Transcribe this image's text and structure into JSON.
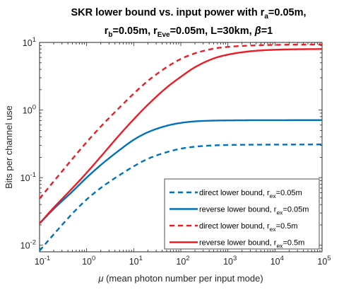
{
  "chart_data": {
    "type": "line",
    "title": {
      "line1": [
        "SKR lower bound vs. input power with r",
        "a",
        "=0.05m,"
      ],
      "line2": [
        "r",
        "b",
        "=0.05m, r",
        "Eve",
        "=0.05m, L=30km, ",
        "β",
        "=1"
      ]
    },
    "xlabel": {
      "symbol": "μ",
      "text": " (mean photon number per input mode)"
    },
    "ylabel": "Bits per channel use",
    "xscale": "log",
    "yscale": "log",
    "xlim": [
      0.1,
      100000
    ],
    "ylim": [
      0.008,
      10
    ],
    "x_ticks": [
      {
        "v": 0.1,
        "base": "10",
        "exp": "-1"
      },
      {
        "v": 1,
        "base": "10",
        "exp": "0"
      },
      {
        "v": 10,
        "base": "10",
        "exp": "1"
      },
      {
        "v": 100,
        "base": "10",
        "exp": "2"
      },
      {
        "v": 1000,
        "base": "10",
        "exp": "3"
      },
      {
        "v": 10000,
        "base": "10",
        "exp": "4"
      },
      {
        "v": 100000,
        "base": "10",
        "exp": "5"
      }
    ],
    "y_ticks": [
      {
        "v": 0.01,
        "base": "10",
        "exp": "-2"
      },
      {
        "v": 0.1,
        "base": "10",
        "exp": "-1"
      },
      {
        "v": 1,
        "base": "10",
        "exp": "0"
      },
      {
        "v": 10,
        "base": "10",
        "exp": "1"
      }
    ],
    "legend_position": "bottom-right",
    "series": [
      {
        "name": [
          "direct lower bound, r",
          "ex",
          "=0.05m"
        ],
        "color": "#0072BD",
        "dash": "dashed",
        "x": [
          0.1,
          0.2,
          0.5,
          1,
          2,
          5,
          10,
          20,
          50,
          100,
          200,
          500,
          1000,
          3000,
          10000,
          100000
        ],
        "y": [
          0.0083,
          0.0145,
          0.0295,
          0.0475,
          0.0705,
          0.109,
          0.147,
          0.19,
          0.238,
          0.268,
          0.287,
          0.3,
          0.304,
          0.307,
          0.308,
          0.31
        ]
      },
      {
        "name": [
          "reverse lower bound, r",
          "ex",
          "=0.05m"
        ],
        "color": "#0072BD",
        "dash": "solid",
        "x": [
          0.1,
          0.2,
          0.5,
          1,
          2,
          5,
          10,
          20,
          50,
          100,
          200,
          500,
          1000,
          3000,
          10000,
          100000
        ],
        "y": [
          0.021,
          0.0345,
          0.0625,
          0.1,
          0.154,
          0.256,
          0.363,
          0.47,
          0.585,
          0.645,
          0.68,
          0.698,
          0.703,
          0.707,
          0.708,
          0.71
        ]
      },
      {
        "name": [
          "direct lower bound, r",
          "ex",
          "=0.5m"
        ],
        "color": "#ED1C24",
        "dash": "dashed",
        "x": [
          0.1,
          0.2,
          0.5,
          1,
          2,
          5,
          10,
          20,
          50,
          100,
          200,
          500,
          1000,
          3000,
          10000,
          100000
        ],
        "y": [
          0.049,
          0.088,
          0.19,
          0.335,
          0.57,
          1.09,
          1.75,
          2.7,
          4.3,
          5.7,
          6.9,
          8.1,
          8.6,
          9.0,
          9.2,
          9.3
        ]
      },
      {
        "name": [
          "reverse lower bound, r",
          "ex",
          "=0.5m"
        ],
        "color": "#ED1C24",
        "dash": "solid",
        "x": [
          0.1,
          0.2,
          0.5,
          1,
          2,
          5,
          10,
          20,
          50,
          100,
          200,
          500,
          1000,
          3000,
          10000,
          100000
        ],
        "y": [
          0.021,
          0.036,
          0.07,
          0.118,
          0.205,
          0.43,
          0.73,
          1.2,
          2.15,
          3.1,
          4.3,
          5.8,
          6.6,
          7.4,
          7.8,
          8.0
        ]
      }
    ]
  }
}
